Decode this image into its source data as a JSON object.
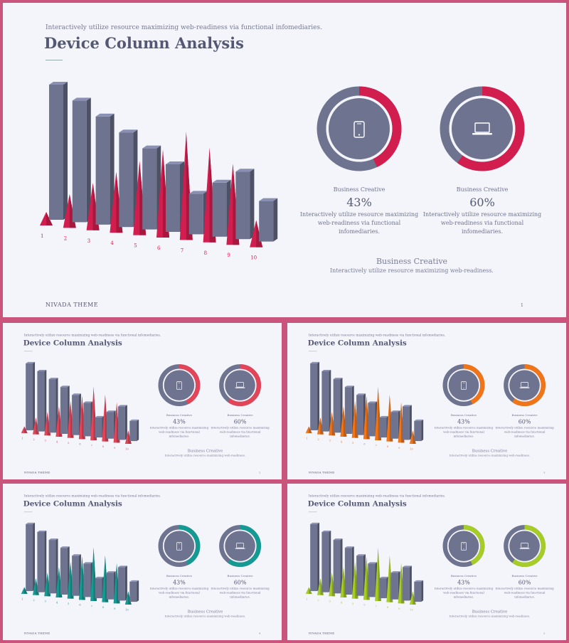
{
  "slide": {
    "subtitle": "Interactively utilize resource maximizing web-readiness via functional infomediaries.",
    "title": "Device Column Analysis",
    "footer": "NIVADA THEME",
    "page_number": "1",
    "donuts": [
      {
        "icon": "phone-icon",
        "label": "Business Creative",
        "percent_text": "43%",
        "description": "Interactively utilize resource maximizing web-readiness via functional infomediaries."
      },
      {
        "icon": "laptop-icon",
        "label": "Business Creative",
        "percent_text": "60%",
        "description": "Interactively utilize resource maximizing web-readiness via functional infomediaries."
      }
    ],
    "bottom_title": "Business Creative",
    "bottom_desc": "Interactively utilize resource maximizing web-readiness."
  },
  "themes": [
    {
      "accent": "#d21e4e",
      "page_number": "1"
    },
    {
      "accent": "#e24458",
      "page_number": "2"
    },
    {
      "accent": "#f07418",
      "page_number": "3"
    },
    {
      "accent": "#159a93",
      "page_number": "4"
    },
    {
      "accent": "#a6cc27",
      "page_number": "5"
    }
  ],
  "colors": {
    "bar": "#6e7390",
    "ring": "#6e7390",
    "background": "#f4f4fb",
    "border": "#c9557c"
  },
  "chart_data": {
    "type": "bar",
    "categories": [
      "1",
      "2",
      "3",
      "4",
      "5",
      "6",
      "7",
      "8",
      "9",
      "10"
    ],
    "series": [
      {
        "values": [
          10,
          9,
          8,
          7,
          6,
          5,
          3,
          4,
          5,
          3
        ]
      },
      {
        "values": [
          1,
          2.5,
          3.5,
          4.5,
          5.5,
          6.5,
          8,
          7,
          6,
          2
        ]
      }
    ],
    "donuts": [
      43,
      60
    ]
  }
}
